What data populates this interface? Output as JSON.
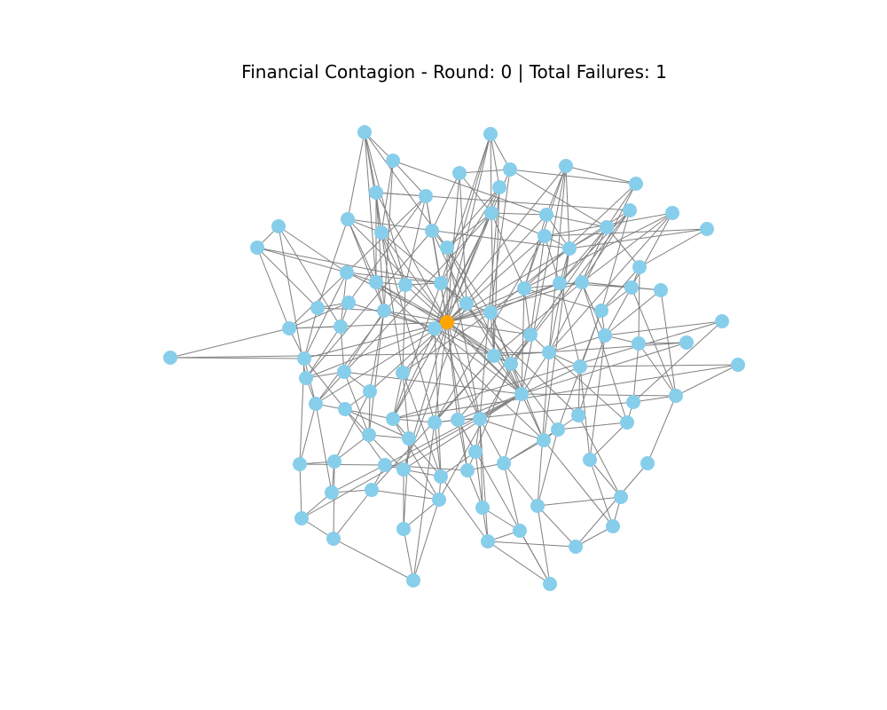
{
  "chart_data": {
    "type": "network",
    "title": "Financial Contagion - Round: 0 | Total Failures: 1",
    "round": 0,
    "total_failures": 1,
    "node_count": 100,
    "colors": {
      "healthy": "#87ceeb",
      "failed": "#ffa500",
      "edge": "#808080",
      "background": "#ffffff"
    },
    "grid": false,
    "axes_visible": false,
    "failed_node_ids": [
      0
    ]
  }
}
